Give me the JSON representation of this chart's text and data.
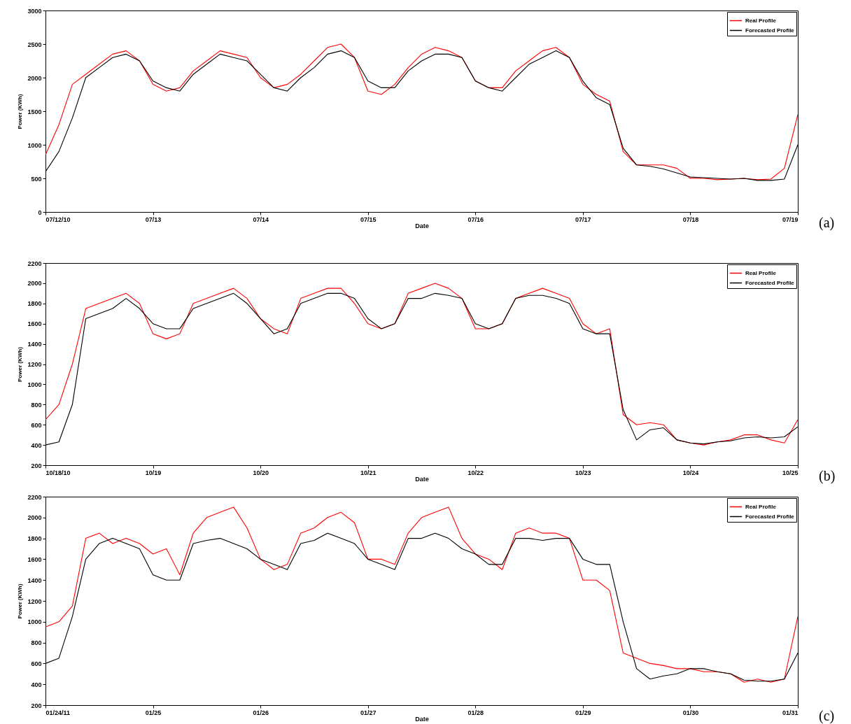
{
  "chart_data": [
    {
      "type": "line",
      "xlabel": "Date",
      "ylabel": "Power (KWh)",
      "annotations": [
        "(a)"
      ],
      "legend": "top right",
      "xlim": [
        "--07-12",
        "--07-19"
      ],
      "ylim": [
        0,
        3000
      ],
      "yticks": [
        0,
        500,
        1000,
        1500,
        2000,
        2500,
        3000
      ],
      "xticks": [
        {
          "value": "--07-12",
          "label": "07/12/10"
        },
        {
          "value": "--07-13",
          "label": "07/13"
        },
        {
          "value": "--07-14",
          "label": "07/14"
        },
        {
          "value": "--07-15",
          "label": "07/15"
        },
        {
          "value": "--07-16",
          "label": "07/16"
        },
        {
          "value": "--07-17",
          "label": "07/17"
        },
        {
          "value": "--07-18",
          "label": "07/18"
        },
        {
          "value": "--07-19",
          "label": "07/19"
        }
      ],
      "x": [
        "--07-12T00:00",
        "--07-12T03:00",
        "--07-12T06:00",
        "--07-12T09:00",
        "--07-12T12:00",
        "--07-12T15:00",
        "--07-12T18:00",
        "--07-12T21:00",
        "--07-13T00:00",
        "--07-13T03:00",
        "--07-13T06:00",
        "--07-13T09:00",
        "--07-13T12:00",
        "--07-13T15:00",
        "--07-13T18:00",
        "--07-13T21:00",
        "--07-14T00:00",
        "--07-14T03:00",
        "--07-14T06:00",
        "--07-14T09:00",
        "--07-14T12:00",
        "--07-14T15:00",
        "--07-14T18:00",
        "--07-14T21:00",
        "--07-15T00:00",
        "--07-15T03:00",
        "--07-15T06:00",
        "--07-15T09:00",
        "--07-15T12:00",
        "--07-15T15:00",
        "--07-15T18:00",
        "--07-15T21:00",
        "--07-16T00:00",
        "--07-16T03:00",
        "--07-16T06:00",
        "--07-16T09:00",
        "--07-16T12:00",
        "--07-16T15:00",
        "--07-16T18:00",
        "--07-16T21:00",
        "--07-17T00:00",
        "--07-17T03:00",
        "--07-17T06:00",
        "--07-17T09:00",
        "--07-17T12:00",
        "--07-17T15:00",
        "--07-17T18:00",
        "--07-17T21:00",
        "--07-18T00:00",
        "--07-18T03:00",
        "--07-18T06:00",
        "--07-18T09:00",
        "--07-18T12:00",
        "--07-18T15:00",
        "--07-18T18:00",
        "--07-18T21:00",
        "--07-19T00:00"
      ],
      "series": [
        {
          "name": "Real Profile",
          "color": "#ff0000",
          "values": [
            850,
            1300,
            1900,
            2050,
            2200,
            2350,
            2400,
            2250,
            1900,
            1800,
            1850,
            2100,
            2250,
            2400,
            2350,
            2300,
            2000,
            1850,
            1900,
            2050,
            2250,
            2450,
            2500,
            2300,
            1800,
            1750,
            1900,
            2150,
            2350,
            2450,
            2400,
            2300,
            1950,
            1850,
            1850,
            2100,
            2250,
            2400,
            2450,
            2300,
            1900,
            1750,
            1650,
            900,
            700,
            700,
            700,
            650,
            500,
            500,
            480,
            490,
            500,
            480,
            490,
            650,
            1450
          ]
        },
        {
          "name": "Forecasted Profile",
          "color": "#000000",
          "values": [
            600,
            900,
            1400,
            2000,
            2150,
            2300,
            2350,
            2250,
            1950,
            1850,
            1800,
            2050,
            2200,
            2350,
            2300,
            2250,
            2050,
            1850,
            1800,
            2000,
            2150,
            2350,
            2400,
            2300,
            1950,
            1850,
            1850,
            2100,
            2250,
            2350,
            2350,
            2300,
            1950,
            1850,
            1800,
            2000,
            2200,
            2300,
            2400,
            2300,
            1950,
            1700,
            1600,
            950,
            700,
            680,
            640,
            580,
            520,
            510,
            500,
            490,
            500,
            470,
            470,
            490,
            1000
          ]
        }
      ]
    },
    {
      "type": "line",
      "xlabel": "Date",
      "ylabel": "Power (KWh)",
      "annotations": [
        "(b)"
      ],
      "legend": "top right",
      "xlim": [
        "--10-18",
        "--10-25"
      ],
      "ylim": [
        200,
        2200
      ],
      "yticks": [
        200,
        400,
        600,
        800,
        1000,
        1200,
        1400,
        1600,
        1800,
        2000,
        2200
      ],
      "xticks": [
        {
          "value": "--10-18",
          "label": "10/18/10"
        },
        {
          "value": "--10-19",
          "label": "10/19"
        },
        {
          "value": "--10-20",
          "label": "10/20"
        },
        {
          "value": "--10-21",
          "label": "10/21"
        },
        {
          "value": "--10-22",
          "label": "10/22"
        },
        {
          "value": "--10-23",
          "label": "10/23"
        },
        {
          "value": "--10-24",
          "label": "10/24"
        },
        {
          "value": "--10-25",
          "label": "10/25"
        }
      ],
      "x": [
        "--10-18T00:00",
        "--10-18T03:00",
        "--10-18T06:00",
        "--10-18T09:00",
        "--10-18T12:00",
        "--10-18T15:00",
        "--10-18T18:00",
        "--10-18T21:00",
        "--10-19T00:00",
        "--10-19T03:00",
        "--10-19T06:00",
        "--10-19T09:00",
        "--10-19T12:00",
        "--10-19T15:00",
        "--10-19T18:00",
        "--10-19T21:00",
        "--10-20T00:00",
        "--10-20T03:00",
        "--10-20T06:00",
        "--10-20T09:00",
        "--10-20T12:00",
        "--10-20T15:00",
        "--10-20T18:00",
        "--10-20T21:00",
        "--10-21T00:00",
        "--10-21T03:00",
        "--10-21T06:00",
        "--10-21T09:00",
        "--10-21T12:00",
        "--10-21T15:00",
        "--10-21T18:00",
        "--10-21T21:00",
        "--10-22T00:00",
        "--10-22T03:00",
        "--10-22T06:00",
        "--10-22T09:00",
        "--10-22T12:00",
        "--10-22T15:00",
        "--10-22T18:00",
        "--10-22T21:00",
        "--10-23T00:00",
        "--10-23T03:00",
        "--10-23T06:00",
        "--10-23T09:00",
        "--10-23T12:00",
        "--10-23T15:00",
        "--10-23T18:00",
        "--10-23T21:00",
        "--10-24T00:00",
        "--10-24T03:00",
        "--10-24T06:00",
        "--10-24T09:00",
        "--10-24T12:00",
        "--10-24T15:00",
        "--10-24T18:00",
        "--10-24T21:00",
        "--10-25T00:00"
      ],
      "series": [
        {
          "name": "Real Profile",
          "color": "#ff0000",
          "values": [
            650,
            800,
            1200,
            1750,
            1800,
            1850,
            1900,
            1800,
            1500,
            1450,
            1500,
            1800,
            1850,
            1900,
            1950,
            1850,
            1650,
            1550,
            1500,
            1850,
            1900,
            1950,
            1950,
            1800,
            1600,
            1550,
            1600,
            1900,
            1950,
            2000,
            1950,
            1850,
            1550,
            1550,
            1600,
            1850,
            1900,
            1950,
            1900,
            1850,
            1600,
            1500,
            1550,
            700,
            600,
            620,
            600,
            450,
            420,
            400,
            430,
            450,
            500,
            500,
            450,
            420,
            650
          ]
        },
        {
          "name": "Forecasted Profile",
          "color": "#000000",
          "values": [
            400,
            430,
            800,
            1650,
            1700,
            1750,
            1850,
            1750,
            1600,
            1550,
            1550,
            1750,
            1800,
            1850,
            1900,
            1800,
            1650,
            1500,
            1550,
            1800,
            1850,
            1900,
            1900,
            1850,
            1650,
            1550,
            1600,
            1850,
            1850,
            1900,
            1880,
            1850,
            1600,
            1550,
            1600,
            1850,
            1880,
            1880,
            1850,
            1800,
            1550,
            1500,
            1500,
            750,
            450,
            550,
            570,
            450,
            420,
            410,
            430,
            440,
            470,
            480,
            470,
            480,
            580
          ]
        }
      ]
    },
    {
      "type": "line",
      "xlabel": "Date",
      "ylabel": "Power (KWh)",
      "annotations": [
        "(c)"
      ],
      "legend": "top right",
      "xlim": [
        "--01-24",
        "--01-31"
      ],
      "ylim": [
        200,
        2200
      ],
      "yticks": [
        200,
        400,
        600,
        800,
        1000,
        1200,
        1400,
        1600,
        1800,
        2000,
        2200
      ],
      "xticks": [
        {
          "value": "--01-24",
          "label": "01/24/11"
        },
        {
          "value": "--01-25",
          "label": "01/25"
        },
        {
          "value": "--01-26",
          "label": "01/26"
        },
        {
          "value": "--01-27",
          "label": "01/27"
        },
        {
          "value": "--01-28",
          "label": "01/28"
        },
        {
          "value": "--01-29",
          "label": "01/29"
        },
        {
          "value": "--01-30",
          "label": "01/30"
        },
        {
          "value": "--01-31",
          "label": "01/31"
        }
      ],
      "x": [
        "--01-24T00:00",
        "--01-24T03:00",
        "--01-24T06:00",
        "--01-24T09:00",
        "--01-24T12:00",
        "--01-24T15:00",
        "--01-24T18:00",
        "--01-24T21:00",
        "--01-25T00:00",
        "--01-25T03:00",
        "--01-25T06:00",
        "--01-25T09:00",
        "--01-25T12:00",
        "--01-25T15:00",
        "--01-25T18:00",
        "--01-25T21:00",
        "--01-26T00:00",
        "--01-26T03:00",
        "--01-26T06:00",
        "--01-26T09:00",
        "--01-26T12:00",
        "--01-26T15:00",
        "--01-26T18:00",
        "--01-26T21:00",
        "--01-27T00:00",
        "--01-27T03:00",
        "--01-27T06:00",
        "--01-27T09:00",
        "--01-27T12:00",
        "--01-27T15:00",
        "--01-27T18:00",
        "--01-27T21:00",
        "--01-28T00:00",
        "--01-28T03:00",
        "--01-28T06:00",
        "--01-28T09:00",
        "--01-28T12:00",
        "--01-28T15:00",
        "--01-28T18:00",
        "--01-28T21:00",
        "--01-29T00:00",
        "--01-29T03:00",
        "--01-29T06:00",
        "--01-29T09:00",
        "--01-29T12:00",
        "--01-29T15:00",
        "--01-29T18:00",
        "--01-29T21:00",
        "--01-30T00:00",
        "--01-30T03:00",
        "--01-30T06:00",
        "--01-30T09:00",
        "--01-30T12:00",
        "--01-30T15:00",
        "--01-30T18:00",
        "--01-30T21:00",
        "--01-31T00:00"
      ],
      "series": [
        {
          "name": "Real Profile",
          "color": "#ff0000",
          "values": [
            950,
            1000,
            1150,
            1800,
            1850,
            1750,
            1800,
            1750,
            1650,
            1700,
            1450,
            1850,
            2000,
            2050,
            2100,
            1900,
            1600,
            1500,
            1550,
            1850,
            1900,
            2000,
            2050,
            1950,
            1600,
            1600,
            1550,
            1850,
            2000,
            2050,
            2100,
            1800,
            1650,
            1600,
            1500,
            1850,
            1900,
            1850,
            1850,
            1800,
            1400,
            1400,
            1300,
            700,
            650,
            600,
            580,
            550,
            550,
            520,
            520,
            500,
            420,
            450,
            420,
            450,
            1050
          ]
        },
        {
          "name": "Forecasted Profile",
          "color": "#000000",
          "values": [
            600,
            650,
            1050,
            1600,
            1750,
            1800,
            1750,
            1700,
            1450,
            1400,
            1400,
            1750,
            1780,
            1800,
            1750,
            1700,
            1600,
            1550,
            1500,
            1750,
            1780,
            1850,
            1800,
            1750,
            1600,
            1550,
            1500,
            1800,
            1800,
            1850,
            1800,
            1700,
            1650,
            1550,
            1550,
            1800,
            1800,
            1780,
            1800,
            1800,
            1600,
            1550,
            1550,
            1000,
            550,
            450,
            480,
            500,
            550,
            550,
            520,
            500,
            440,
            430,
            430,
            450,
            700
          ]
        }
      ]
    }
  ]
}
